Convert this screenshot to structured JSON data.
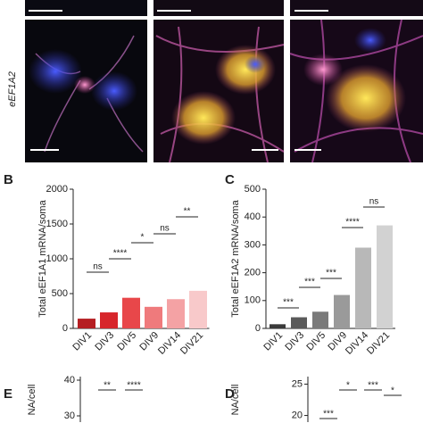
{
  "image_label": "eEF1A2",
  "panel_letters": [
    "B",
    "C",
    "E",
    "D"
  ],
  "chart_data": [
    {
      "type": "bar",
      "ylabel": "Total eEF1A1 mRNA/soma",
      "categories": [
        "DIV1",
        "DIV3",
        "DIV5",
        "DIV9",
        "DIV14",
        "DIV21"
      ],
      "values": [
        140,
        230,
        440,
        310,
        420,
        540
      ],
      "colors": [
        "#b51e22",
        "#d7262b",
        "#e8474a",
        "#ef7a7c",
        "#f4a2a4",
        "#f8c9ca"
      ],
      "ylim": [
        0,
        2000
      ],
      "yticks": [
        0,
        500,
        1000,
        1500,
        2000
      ],
      "annotations": [
        "ns",
        "****",
        "*",
        "ns",
        "**"
      ]
    },
    {
      "type": "bar",
      "ylabel": "Total eEF1A2 mRNA/soma",
      "categories": [
        "DIV1",
        "DIV3",
        "DIV5",
        "DIV9",
        "DIV14",
        "DIV21"
      ],
      "values": [
        15,
        40,
        60,
        120,
        290,
        370
      ],
      "colors": [
        "#3a3a3a",
        "#5a5a5a",
        "#7a7a7a",
        "#9a9a9a",
        "#b8b8b8",
        "#d2d2d2"
      ],
      "ylim": [
        0,
        500
      ],
      "yticks": [
        0,
        100,
        200,
        300,
        400,
        500
      ],
      "annotations": [
        "***",
        "***",
        "***",
        "****",
        "ns"
      ]
    },
    {
      "type": "bar",
      "ylabel": "NA/cell",
      "ylim": [
        28,
        41
      ],
      "yticks": [
        30,
        40
      ],
      "annotations": [
        "**",
        "****"
      ]
    },
    {
      "type": "bar",
      "ylabel": "NA/cell",
      "ylim": [
        18.8,
        26.2
      ],
      "yticks": [
        20,
        25
      ],
      "annotations": [
        "*",
        "***",
        "*",
        "***"
      ]
    }
  ]
}
